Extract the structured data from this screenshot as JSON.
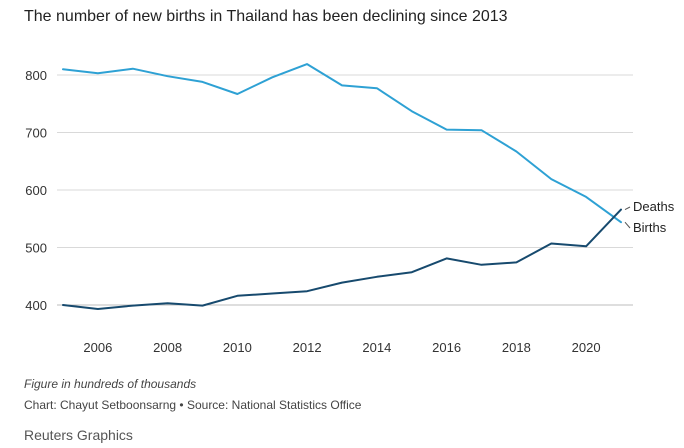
{
  "chart_data": {
    "type": "line",
    "title": "The number of new births in Thailand has been declining since 2013",
    "xlabel": "",
    "ylabel": "",
    "x": [
      2005,
      2006,
      2007,
      2008,
      2009,
      2010,
      2011,
      2012,
      2013,
      2014,
      2015,
      2016,
      2017,
      2018,
      2019,
      2020,
      2021
    ],
    "xlim": [
      2005,
      2021
    ],
    "ylim": [
      380,
      830
    ],
    "xticks": [
      2006,
      2008,
      2010,
      2012,
      2014,
      2016,
      2018,
      2020
    ],
    "yticks": [
      400,
      500,
      600,
      700,
      800
    ],
    "grid": "horizontal",
    "legend": "direct labels at line ends (right)",
    "series": [
      {
        "name": "Births",
        "color": "#2ea1d4",
        "values": [
          810,
          803,
          811,
          798,
          788,
          767,
          796,
          819,
          782,
          777,
          737,
          705,
          704,
          667,
          619,
          588,
          544
        ]
      },
      {
        "name": "Deaths",
        "color": "#174a6e",
        "values": [
          400,
          393,
          399,
          403,
          399,
          416,
          420,
          424,
          439,
          449,
          457,
          481,
          470,
          474,
          507,
          502,
          566
        ]
      }
    ]
  },
  "footer": {
    "note": "Figure in hundreds of thousands",
    "source": "Chart: Chayut Setboonsarng • Source: National Statistics Office",
    "brand": "Reuters Graphics"
  }
}
